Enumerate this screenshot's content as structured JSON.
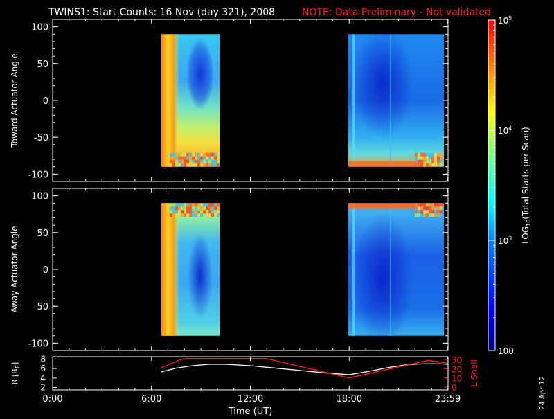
{
  "title": "TWINS1: Start Counts: 16 Nov (day 321), 2008",
  "note": "NOTE: Data Preliminary - Not validated",
  "date_stamp": "24 Apr 12",
  "colors": {
    "background": "#000000",
    "foreground": "#ffffff",
    "note": "#ff2020",
    "l_shell": "#ff2020",
    "r_line": "#ffffff"
  },
  "colorbar": {
    "label": "LOG10(Total Starts per Scan)",
    "label_main": "LOG",
    "label_sub": "10",
    "label_rest": "(Total Starts per Scan)",
    "scale": "log",
    "range": [
      100,
      100000
    ],
    "ticks": [
      {
        "value": 100,
        "label": "100"
      },
      {
        "value": 1000,
        "label": "10",
        "exp": "3"
      },
      {
        "value": 10000,
        "label": "10",
        "exp": "4"
      },
      {
        "value": 100000,
        "label": "10",
        "exp": "5"
      }
    ]
  },
  "chart_data": [
    {
      "type": "heatmap",
      "name": "toward",
      "ylabel": "Toward Actuator Angle",
      "xlim": [
        0,
        24
      ],
      "ylim": [
        -110,
        110
      ],
      "yticks": [
        {
          "value": 100,
          "label": "100"
        },
        {
          "value": 50,
          "label": "50"
        },
        {
          "value": 0,
          "label": "0"
        },
        {
          "value": -50,
          "label": "-50"
        },
        {
          "value": -100,
          "label": "-100"
        }
      ],
      "data_blocks": [
        {
          "x_start": 6.6,
          "x_end": 10.15,
          "y_min": -90,
          "y_max": 90
        },
        {
          "x_start": 17.95,
          "x_end": 23.75,
          "y_min": -90,
          "y_max": 90
        }
      ]
    },
    {
      "type": "heatmap",
      "name": "away",
      "ylabel": "Away Actuator Angle",
      "xlim": [
        0,
        24
      ],
      "ylim": [
        -110,
        110
      ],
      "yticks": [
        {
          "value": 100,
          "label": "100"
        },
        {
          "value": 50,
          "label": "50"
        },
        {
          "value": 0,
          "label": "0"
        },
        {
          "value": -50,
          "label": "-50"
        },
        {
          "value": -100,
          "label": "-100"
        }
      ],
      "data_blocks": [
        {
          "x_start": 6.6,
          "x_end": 10.15,
          "y_min": -90,
          "y_max": 90
        },
        {
          "x_start": 17.95,
          "x_end": 23.75,
          "y_min": -90,
          "y_max": 90
        }
      ]
    },
    {
      "type": "line",
      "name": "ephemeris",
      "ylabel": "R [RE]",
      "ylabel_main": "R [R",
      "ylabel_sub": "E",
      "ylabel_end": "]",
      "ylabel_right": "L Shell",
      "xlabel": "Time (UT)",
      "xlim": [
        0,
        24
      ],
      "ylim": [
        1.5,
        8.5
      ],
      "ylim_right": [
        0,
        30
      ],
      "yticks": [
        {
          "value": 8,
          "label": "8"
        },
        {
          "value": 6,
          "label": "6"
        },
        {
          "value": 4,
          "label": "4"
        },
        {
          "value": 2,
          "label": "2"
        }
      ],
      "yticks_right": [
        {
          "value": 30,
          "label": "30"
        },
        {
          "value": 20,
          "label": "20"
        },
        {
          "value": 10,
          "label": "10"
        },
        {
          "value": 0,
          "label": "0"
        }
      ],
      "xticks": [
        {
          "value": 0,
          "label": "0:00"
        },
        {
          "value": 6,
          "label": "6:00"
        },
        {
          "value": 12,
          "label": "12:00"
        },
        {
          "value": 18,
          "label": "18:00"
        },
        {
          "value": 23.983,
          "label": "23:59"
        }
      ],
      "series": [
        {
          "name": "R",
          "axis": "left",
          "x": [
            6.6,
            7.5,
            8.5,
            9.5,
            10.5,
            12,
            13.5,
            15,
            16.5,
            18,
            19.5,
            20.5,
            21.5,
            22.5,
            23.5,
            23.98
          ],
          "y": [
            5.3,
            6.1,
            6.6,
            6.9,
            6.9,
            6.6,
            6.1,
            5.6,
            5.1,
            4.7,
            5.6,
            6.3,
            6.8,
            7.0,
            7.0,
            6.9
          ]
        },
        {
          "name": "L Shell",
          "axis": "right",
          "x": [
            6.6,
            7.8,
            8.1,
            12.9,
            13.2,
            18,
            22.8,
            23.98
          ],
          "y": [
            21,
            30,
            31,
            31,
            30,
            10,
            29,
            26
          ]
        }
      ]
    }
  ]
}
